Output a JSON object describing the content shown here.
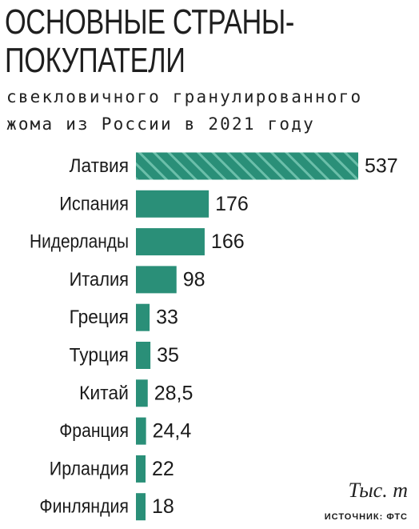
{
  "title_line1": "ОСНОВНЫЕ СТРАНЫ-",
  "title_line2": "ПОКУПАТЕЛИ",
  "subtitle_line1": "свекловичного гранулированного",
  "subtitle_line2": "жома из России в 2021 году",
  "units": "Тыс. т",
  "source": "ИСТОЧНИК: ФТС",
  "colors": {
    "bar": "#2a8f78",
    "stripe": "#6bbfaa",
    "text": "#1a1a1a"
  },
  "chart_data": {
    "type": "bar",
    "orientation": "horizontal",
    "categories": [
      "Латвия",
      "Испания",
      "Нидерланды",
      "Италия",
      "Греция",
      "Турция",
      "Китай",
      "Франция",
      "Ирландия",
      "Финляндия"
    ],
    "values": [
      537,
      176,
      166,
      98,
      33,
      35,
      28.5,
      24.4,
      22,
      18
    ],
    "value_labels": [
      "537",
      "176",
      "166",
      "98",
      "33",
      "35",
      "28,5",
      "24,4",
      "22",
      "18"
    ],
    "highlight": "Латвия"
  }
}
